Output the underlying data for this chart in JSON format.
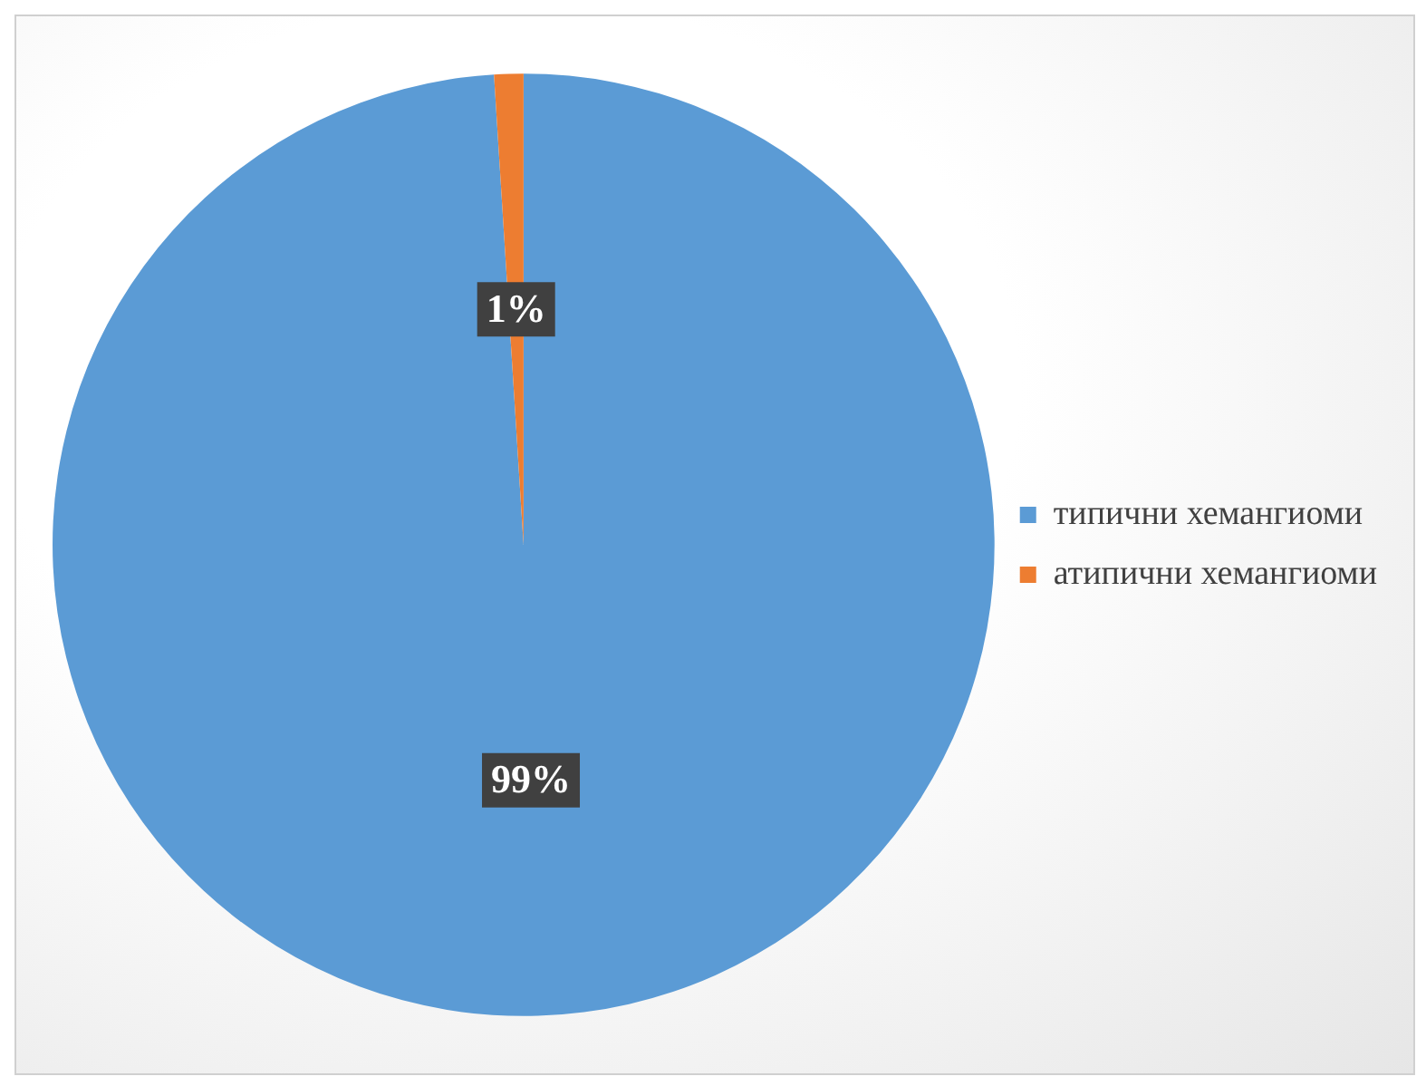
{
  "chart_data": {
    "type": "pie",
    "categories": [
      "типични хемангиоми",
      "атипични хемангиоми"
    ],
    "values": [
      99,
      1
    ],
    "colors": [
      "#5b9bd5",
      "#ed7d31"
    ],
    "value_labels": [
      "99%",
      "1%"
    ],
    "legend": "right"
  }
}
